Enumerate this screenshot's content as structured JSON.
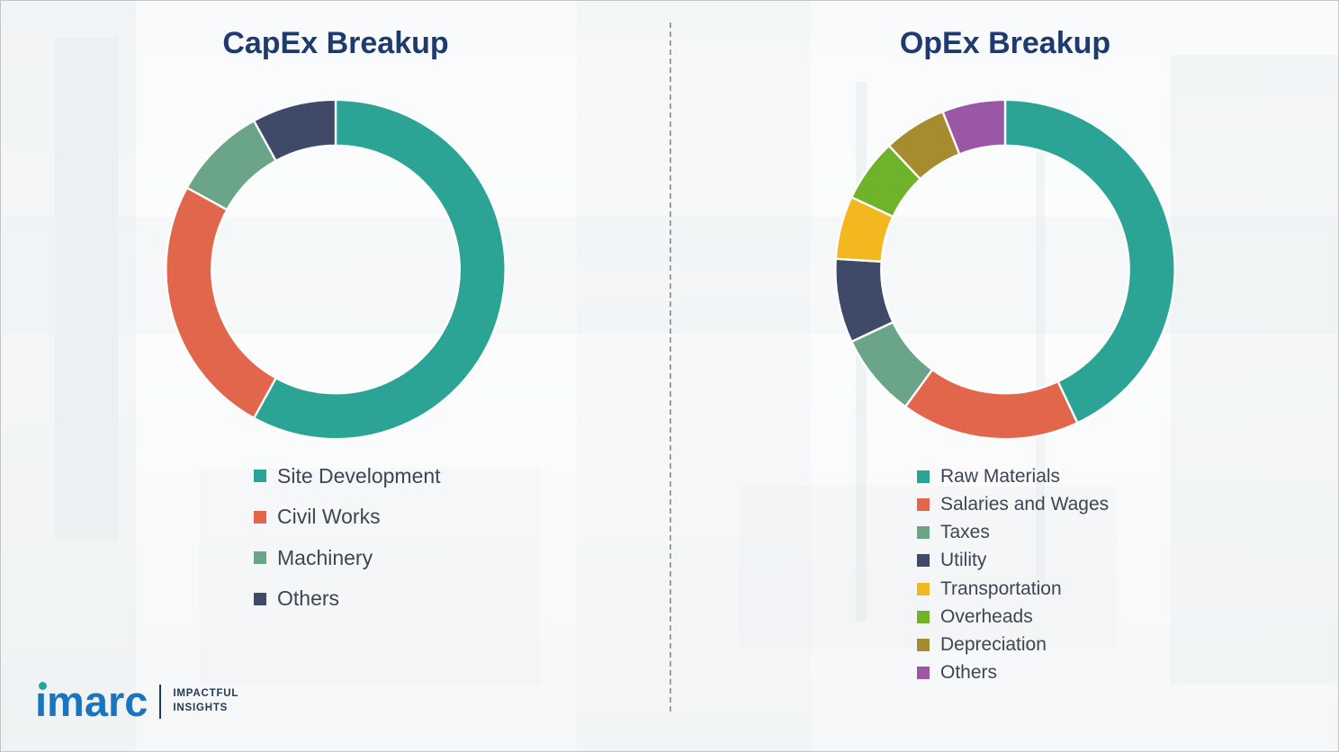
{
  "chart_data": [
    {
      "type": "pie",
      "variant": "donut",
      "title": "CapEx Breakup",
      "labels": [
        "Site Development",
        "Civil Works",
        "Machinery",
        "Others"
      ],
      "values": [
        58,
        25,
        9,
        8
      ],
      "colors": [
        "#2ba496",
        "#e2664b",
        "#6aa489",
        "#3f4a68"
      ],
      "units": "percent",
      "start_angle_deg": 0,
      "direction": "clockwise",
      "legend_position": "below"
    },
    {
      "type": "pie",
      "variant": "donut",
      "title": "OpEx Breakup",
      "labels": [
        "Raw Materials",
        "Salaries and Wages",
        "Taxes",
        "Utility",
        "Transportation",
        "Overheads",
        "Depreciation",
        "Others"
      ],
      "values": [
        43,
        17,
        8,
        8,
        6,
        6,
        6,
        6
      ],
      "colors": [
        "#2ba496",
        "#e2664b",
        "#6aa489",
        "#3f4a68",
        "#f3b71f",
        "#6fb32a",
        "#a78b2f",
        "#9a57a5"
      ],
      "units": "percent",
      "start_angle_deg": 0,
      "direction": "clockwise",
      "legend_position": "below"
    }
  ],
  "logo": {
    "text": "imarc",
    "tagline_line1": "IMPACTFUL",
    "tagline_line2": "INSIGHTS",
    "brand_blue": "#1b75bc",
    "brand_teal": "#1fa79c",
    "brand_navy": "#223a55"
  },
  "theme": {
    "title_color": "#1e3a6e",
    "legend_text_color": "#3e4553",
    "divider_color": "#9aa0a6"
  }
}
